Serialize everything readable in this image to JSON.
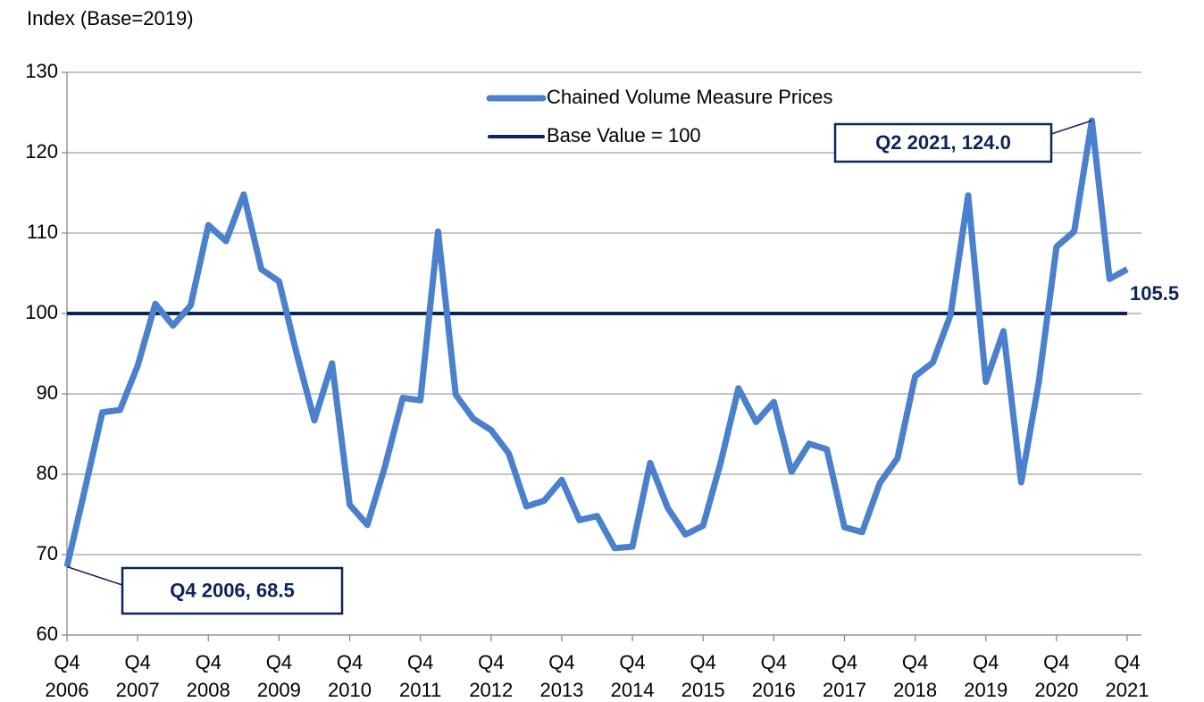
{
  "chart_data": {
    "type": "line",
    "y_axis_label": "Index (Base=2019)",
    "categories": [
      "Q4 2006",
      null,
      null,
      null,
      "Q4 2007",
      null,
      null,
      null,
      "Q4 2008",
      null,
      null,
      null,
      "Q4 2009",
      null,
      null,
      null,
      "Q4 2010",
      null,
      null,
      null,
      "Q4 2011",
      null,
      null,
      null,
      "Q4 2012",
      null,
      null,
      null,
      "Q4 2013",
      null,
      null,
      null,
      "Q4 2014",
      null,
      null,
      null,
      "Q4 2015",
      null,
      null,
      null,
      "Q4 2016",
      null,
      null,
      null,
      "Q4 2017",
      null,
      null,
      null,
      "Q4 2018",
      null,
      null,
      null,
      "Q4 2019",
      null,
      null,
      null,
      "Q4 2020",
      null,
      null,
      null,
      "Q4 2021"
    ],
    "series": [
      {
        "name": "Chained Volume Measure Prices",
        "color": "#4a80cc",
        "values": [
          68.5,
          78,
          87.7,
          88,
          93.5,
          101.2,
          98.5,
          101,
          111,
          109,
          114.8,
          105.5,
          104,
          95,
          86.7,
          93.8,
          76.2,
          73.7,
          81,
          89.5,
          89.2,
          110.2,
          89.9,
          86.9,
          85.5,
          82.6,
          76,
          76.7,
          79.3,
          74.3,
          74.8,
          70.8,
          71,
          81.4,
          75.8,
          72.5,
          73.6,
          81.5,
          90.7,
          86.5,
          89,
          80.3,
          83.8,
          83.1,
          73.4,
          72.8,
          78.9,
          82,
          92.2,
          93.9,
          99.8,
          114.7,
          91.5,
          97.8,
          79,
          91.5,
          108.3,
          110.2,
          124,
          104.3,
          105.5
        ]
      },
      {
        "name": "Base Value = 100",
        "color": "#0c2458",
        "values": [
          100,
          100,
          100,
          100,
          100,
          100,
          100,
          100,
          100,
          100,
          100,
          100,
          100,
          100,
          100,
          100,
          100,
          100,
          100,
          100,
          100,
          100,
          100,
          100,
          100,
          100,
          100,
          100,
          100,
          100,
          100,
          100,
          100,
          100,
          100,
          100,
          100,
          100,
          100,
          100,
          100,
          100,
          100,
          100,
          100,
          100,
          100,
          100,
          100,
          100,
          100,
          100,
          100,
          100,
          100,
          100,
          100,
          100,
          100,
          100,
          100
        ]
      }
    ],
    "annotations": [
      {
        "text": "Q2 2021, 124.0"
      },
      {
        "text": "Q4 2006, 68.5"
      },
      {
        "text": "105.5"
      }
    ],
    "ylim": [
      60,
      130
    ],
    "yticks": [
      60,
      70,
      80,
      90,
      100,
      110,
      120,
      130
    ],
    "grid": true,
    "legend": "top"
  }
}
